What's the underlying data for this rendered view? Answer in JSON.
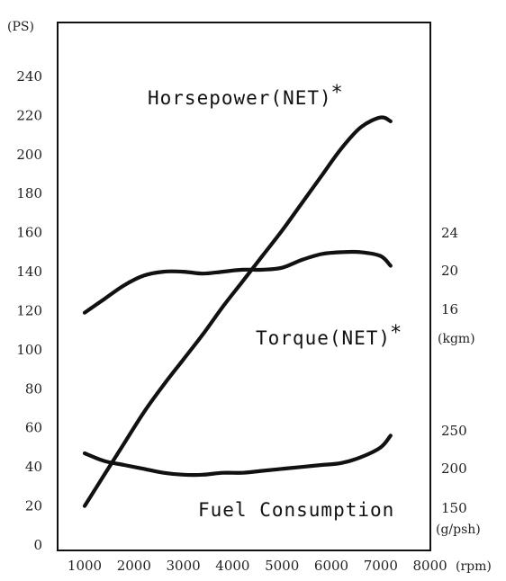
{
  "chart_data": {
    "type": "line",
    "x": {
      "unit": "(rpm)",
      "ticks": [
        1000,
        2000,
        3000,
        4000,
        5000,
        6000,
        7000,
        8000
      ],
      "range": [
        800,
        8000
      ]
    },
    "axes": {
      "left": {
        "unit": "(PS)",
        "ticks": [
          0,
          20,
          40,
          60,
          80,
          100,
          120,
          140,
          160,
          180,
          200,
          220,
          240
        ],
        "range": [
          0,
          250
        ]
      },
      "right_torque": {
        "unit": "(kgm)",
        "ticks": [
          16,
          20,
          24
        ]
      },
      "right_fuel": {
        "unit": "(g/psh)",
        "ticks": [
          150,
          200,
          250
        ]
      }
    },
    "series": [
      {
        "name": "Horsepower(NET)",
        "asterisk": "*",
        "axis": "left",
        "points": [
          [
            1000,
            20
          ],
          [
            1400,
            36
          ],
          [
            1800,
            52
          ],
          [
            2200,
            68
          ],
          [
            2600,
            82
          ],
          [
            3000,
            95
          ],
          [
            3400,
            108
          ],
          [
            3800,
            122
          ],
          [
            4200,
            135
          ],
          [
            4600,
            148
          ],
          [
            5000,
            161
          ],
          [
            5400,
            175
          ],
          [
            5800,
            189
          ],
          [
            6200,
            203
          ],
          [
            6600,
            214
          ],
          [
            7000,
            219
          ],
          [
            7200,
            217
          ]
        ]
      },
      {
        "name": "Torque(NET)",
        "asterisk": "*",
        "axis": "left",
        "points": [
          [
            1000,
            119
          ],
          [
            1400,
            126
          ],
          [
            1800,
            133
          ],
          [
            2200,
            138
          ],
          [
            2600,
            140
          ],
          [
            3000,
            140
          ],
          [
            3400,
            139
          ],
          [
            3800,
            140
          ],
          [
            4200,
            141
          ],
          [
            4600,
            141
          ],
          [
            5000,
            142
          ],
          [
            5400,
            146
          ],
          [
            5800,
            149
          ],
          [
            6200,
            150
          ],
          [
            6600,
            150
          ],
          [
            7000,
            148
          ],
          [
            7200,
            143
          ]
        ]
      },
      {
        "name": "Fuel Consumption",
        "axis": "left",
        "points": [
          [
            1000,
            47
          ],
          [
            1400,
            43
          ],
          [
            1800,
            41
          ],
          [
            2200,
            39
          ],
          [
            2600,
            37
          ],
          [
            3000,
            36
          ],
          [
            3400,
            36
          ],
          [
            3800,
            37
          ],
          [
            4200,
            37
          ],
          [
            4600,
            38
          ],
          [
            5000,
            39
          ],
          [
            5400,
            40
          ],
          [
            5800,
            41
          ],
          [
            6200,
            42
          ],
          [
            6600,
            45
          ],
          [
            7000,
            50
          ],
          [
            7200,
            56
          ]
        ]
      }
    ]
  }
}
